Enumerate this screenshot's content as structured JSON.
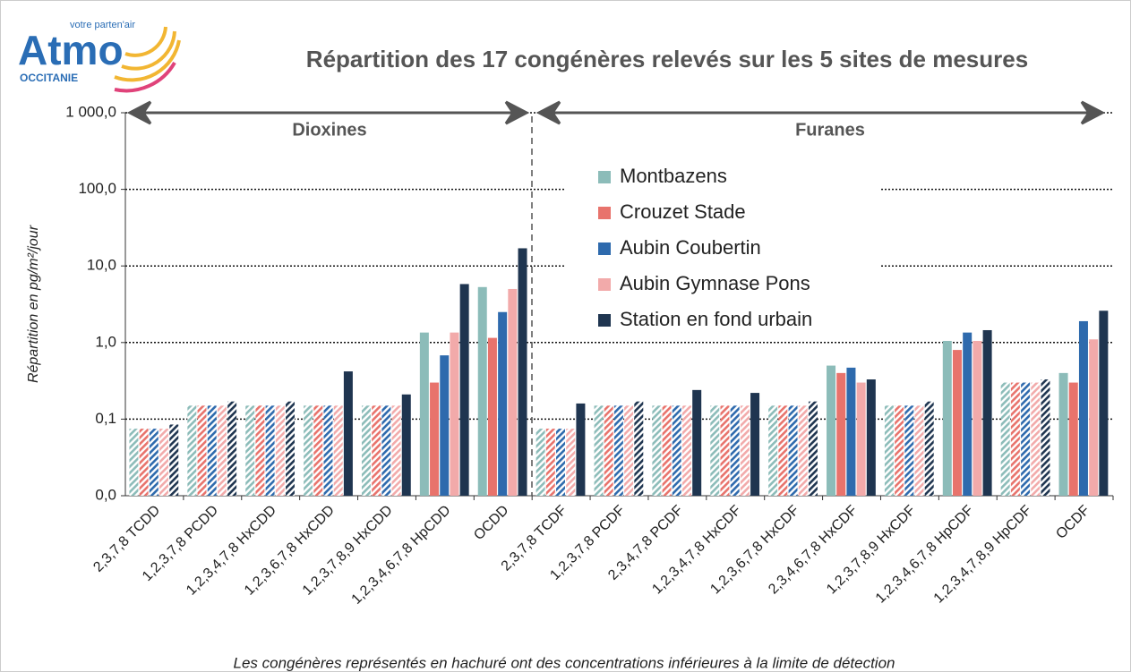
{
  "chart_data": {
    "type": "bar",
    "title": "Répartition des 17 congénères relevés sur les 5 sites de mesures",
    "logo": {
      "brand": "Atmo",
      "tagline": "votre parten'air",
      "region": "OCCITANIE"
    },
    "ylabel": "Répartition en pg/m²/jour",
    "annotations": [
      "Dioxines",
      "Furanes"
    ],
    "footnote": "Les congénères représentés en hachuré ont des concentrations inférieures à la limite de détection",
    "ylog": true,
    "ylim": [
      0.01,
      1000
    ],
    "yticks": [
      {
        "value": 0.01,
        "label": "0,0"
      },
      {
        "value": 0.1,
        "label": "0,1"
      },
      {
        "value": 1,
        "label": "1,0"
      },
      {
        "value": 10,
        "label": "10,0"
      },
      {
        "value": 100,
        "label": "100,0"
      },
      {
        "value": 1000,
        "label": "1 000,0"
      }
    ],
    "grid": true,
    "legend": "upper right",
    "categories": [
      "2,3,7,8 TCDD",
      "1,2,3,7,8 PCDD",
      "1,2,3,4,7,8 HxCDD",
      "1,2,3,6,7,8 HxCDD",
      "1,2,3,7,8,9 HxCDD",
      "1,2,3,4,6,7,8 HpCDD",
      "OCDD",
      "2,3,7,8 TCDF",
      "1,2,3,7,8 PCDF",
      "2,3,4,7,8 PCDF",
      "1,2,3,4,7,8 HxCDF",
      "1,2,3,6,7,8 HxCDF",
      "2,3,4,6,7,8 HxCDF",
      "1,2,3,7,8,9 HxCDF",
      "1,2,3,4,6,7,8 HpCDF",
      "1,2,3,4,7,8,9 HpCDF",
      "OCDF"
    ],
    "series": [
      {
        "name": "Montbazens",
        "color": "#8cbcb9",
        "values": [
          0.075,
          0.15,
          0.15,
          0.15,
          0.15,
          1.35,
          5.3,
          0.075,
          0.15,
          0.15,
          0.15,
          0.15,
          0.5,
          0.15,
          1.05,
          0.3,
          0.4
        ],
        "hatched": [
          true,
          true,
          true,
          true,
          true,
          false,
          false,
          true,
          true,
          true,
          true,
          true,
          false,
          true,
          false,
          true,
          false
        ]
      },
      {
        "name": "Crouzet Stade",
        "color": "#e8736c",
        "values": [
          0.075,
          0.15,
          0.15,
          0.15,
          0.15,
          0.3,
          1.15,
          0.075,
          0.15,
          0.15,
          0.15,
          0.15,
          0.4,
          0.15,
          0.8,
          0.3,
          0.3
        ],
        "hatched": [
          true,
          true,
          true,
          true,
          true,
          false,
          false,
          true,
          true,
          true,
          true,
          true,
          false,
          true,
          false,
          true,
          false
        ]
      },
      {
        "name": "Aubin Coubertin",
        "color": "#2e6aad",
        "values": [
          0.075,
          0.15,
          0.15,
          0.15,
          0.15,
          0.68,
          2.5,
          0.075,
          0.15,
          0.15,
          0.15,
          0.15,
          0.47,
          0.15,
          1.35,
          0.3,
          1.9
        ],
        "hatched": [
          true,
          true,
          true,
          true,
          true,
          false,
          false,
          true,
          true,
          true,
          true,
          true,
          false,
          true,
          false,
          true,
          false
        ]
      },
      {
        "name": "Aubin Gymnase Pons",
        "color": "#f2aaaa",
        "values": [
          0.075,
          0.15,
          0.15,
          0.15,
          0.15,
          1.35,
          5.0,
          0.075,
          0.15,
          0.15,
          0.15,
          0.15,
          0.3,
          0.15,
          1.05,
          0.3,
          1.1
        ],
        "hatched": [
          true,
          true,
          true,
          true,
          true,
          false,
          false,
          true,
          true,
          true,
          true,
          true,
          false,
          true,
          false,
          true,
          false
        ]
      },
      {
        "name": "Station en fond urbain",
        "color": "#1f3550",
        "values": [
          0.085,
          0.17,
          0.17,
          0.42,
          0.21,
          5.8,
          17,
          0.16,
          0.17,
          0.24,
          0.22,
          0.17,
          0.33,
          0.17,
          1.45,
          0.33,
          2.6
        ],
        "hatched": [
          true,
          true,
          true,
          false,
          false,
          false,
          false,
          false,
          true,
          false,
          false,
          true,
          false,
          true,
          false,
          true,
          false
        ]
      }
    ]
  }
}
